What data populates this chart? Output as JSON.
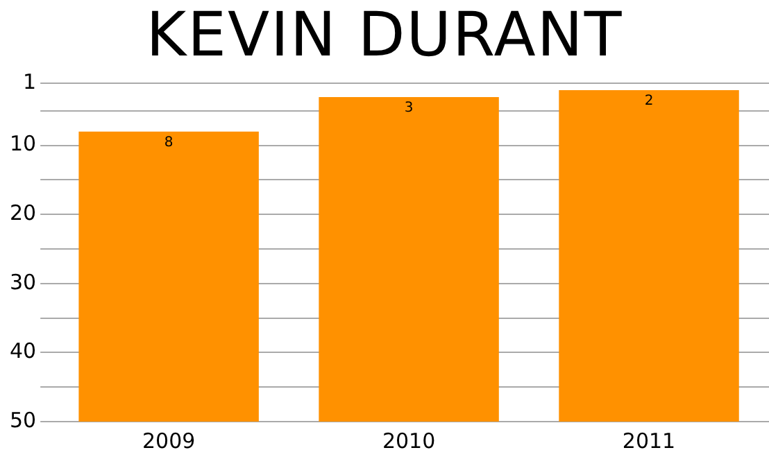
{
  "chart_data": {
    "type": "bar",
    "title": "KEVIN DURANT",
    "categories": [
      "2009",
      "2010",
      "2011"
    ],
    "values": [
      -42,
      -47,
      -48
    ],
    "base": [
      50,
      50,
      50
    ],
    "value_labels": [
      "8",
      "3",
      "2"
    ],
    "color": "#ff9100",
    "ylim": [
      50,
      1
    ],
    "yticks": [
      1,
      {
        "value": 5,
        "label": null
      },
      10,
      {
        "value": 15,
        "label": null
      },
      20,
      {
        "value": 25,
        "label": null
      },
      30,
      {
        "value": 35,
        "label": null
      },
      40,
      {
        "value": 45,
        "label": null
      },
      50
    ],
    "grid": "y",
    "legend": false
  }
}
